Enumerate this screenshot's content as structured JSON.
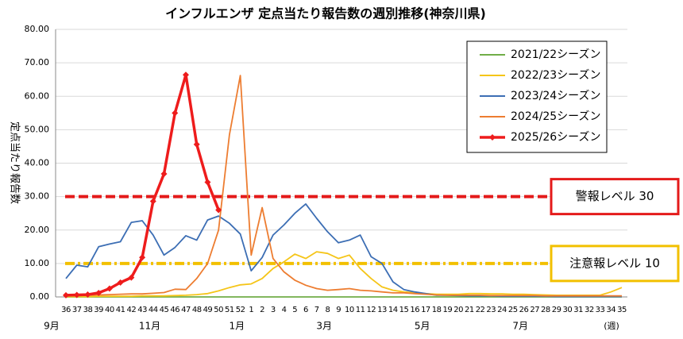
{
  "chart_data": {
    "type": "line",
    "title": "インフルエンザ 定点当たり報告数の週別推移(神奈川県)",
    "y_label": "定点当たり報告数",
    "x_unit": "(週)",
    "categories": [
      "36",
      "37",
      "38",
      "39",
      "40",
      "41",
      "42",
      "43",
      "44",
      "45",
      "46",
      "47",
      "48",
      "49",
      "50",
      "51",
      "52",
      "1",
      "2",
      "3",
      "4",
      "5",
      "6",
      "7",
      "8",
      "9",
      "10",
      "11",
      "12",
      "13",
      "14",
      "15",
      "16",
      "17",
      "18",
      "19",
      "20",
      "21",
      "22",
      "23",
      "24",
      "25",
      "26",
      "27",
      "28",
      "29",
      "30",
      "31",
      "32",
      "33",
      "34",
      "35"
    ],
    "month_labels": [
      {
        "text": "9月",
        "category": "36"
      },
      {
        "text": "11月",
        "category": "45"
      },
      {
        "text": "1月",
        "category": "1"
      },
      {
        "text": "3月",
        "category": "9"
      },
      {
        "text": "5月",
        "category": "18"
      },
      {
        "text": "7月",
        "category": "27"
      }
    ],
    "ylim": [
      0,
      80
    ],
    "yticks": [
      {
        "value": 0,
        "label": "0.00"
      },
      {
        "value": 10,
        "label": "10.00"
      },
      {
        "value": 20,
        "label": "20.00"
      },
      {
        "value": 30,
        "label": "30.00"
      },
      {
        "value": 40,
        "label": "40.00"
      },
      {
        "value": 50,
        "label": "50.00"
      },
      {
        "value": 60,
        "label": "60.00"
      },
      {
        "value": 70,
        "label": "70.00"
      },
      {
        "value": 80,
        "label": "80.00"
      }
    ],
    "reference_lines": [
      {
        "value": 30,
        "label": "警報レベル 30",
        "color": "#e41a1a"
      },
      {
        "value": 10,
        "label": "注意報レベル 10",
        "color": "#f2c000"
      }
    ],
    "series": [
      {
        "name": "2021/22シーズン",
        "color": "#70ad47",
        "values": [
          0,
          0,
          0,
          0,
          0,
          0,
          0,
          0,
          0,
          0,
          0,
          0,
          0,
          0,
          0,
          0,
          0,
          0,
          0,
          0,
          0,
          0,
          0,
          0,
          0,
          0,
          0,
          0,
          0,
          0,
          0,
          0,
          0,
          0,
          0,
          0,
          0,
          0,
          0,
          0,
          0,
          0,
          0,
          0,
          0,
          0,
          0,
          0,
          0,
          0,
          0,
          0
        ]
      },
      {
        "name": "2022/23シーズン",
        "color": "#f5c518",
        "values": [
          0.1,
          0.1,
          0.1,
          0.2,
          0.2,
          0.2,
          0.2,
          0.3,
          0.3,
          0.3,
          0.4,
          0.5,
          0.7,
          1.0,
          1.8,
          2.8,
          3.6,
          3.9,
          5.5,
          8.5,
          10.5,
          12.8,
          11.5,
          13.5,
          13.0,
          11.5,
          12.5,
          8.5,
          5.5,
          3.0,
          2.0,
          1.5,
          1.2,
          1.0,
          0.8,
          0.8,
          0.8,
          1.0,
          1.0,
          0.9,
          0.9,
          0.8,
          0.8,
          0.7,
          0.6,
          0.5,
          0.5,
          0.5,
          0.5,
          0.5,
          1.5,
          2.8
        ]
      },
      {
        "name": "2023/24シーズン",
        "color": "#3c6eb4",
        "values": [
          5.5,
          9.5,
          9.0,
          15.0,
          15.8,
          16.5,
          22.3,
          22.8,
          18.5,
          12.5,
          14.8,
          18.3,
          17.0,
          23.0,
          24.2,
          22.0,
          18.8,
          7.8,
          11.8,
          18.5,
          21.5,
          25.0,
          27.8,
          23.5,
          19.5,
          16.2,
          17.0,
          18.5,
          12.0,
          10.0,
          4.5,
          2.2,
          1.5,
          1.0,
          0.5,
          0.5,
          0.4,
          0.3,
          0.3,
          0.3,
          0.2,
          0.2,
          0.2,
          0.2,
          0.2,
          0.1,
          0.1,
          0.1,
          0.1,
          0.1,
          0.1,
          0.1
        ]
      },
      {
        "name": "2024/25シーズン",
        "color": "#ed7d31",
        "values": [
          0.3,
          0.4,
          0.5,
          0.6,
          0.7,
          0.8,
          0.9,
          0.9,
          1.1,
          1.3,
          2.3,
          2.2,
          5.5,
          10,
          20,
          48.5,
          66.2,
          12.5,
          26.7,
          11.5,
          7.5,
          5.0,
          3.5,
          2.5,
          2.0,
          2.2,
          2.5,
          2.0,
          1.8,
          1.5,
          1.2,
          1.2,
          1.0,
          0.8,
          0.6,
          0.5,
          0.5,
          0.5,
          0.5,
          0.4,
          0.4,
          0.4,
          0.4,
          0.4,
          0.3,
          0.3,
          0.3,
          0.3,
          0.3,
          0.3,
          0.3,
          0.3
        ]
      },
      {
        "name": "2025/26シーズン",
        "color": "#ee1c1c",
        "marker": "diamond",
        "values": [
          0.5,
          0.6,
          0.7,
          1.2,
          2.5,
          4.3,
          5.8,
          11.8,
          28.6,
          36.8,
          55.0,
          66.4,
          45.6,
          34.3,
          26.0,
          null,
          null,
          null,
          null,
          null,
          null,
          null,
          null,
          null,
          null,
          null,
          null,
          null,
          null,
          null,
          null,
          null,
          null,
          null,
          null,
          null,
          null,
          null,
          null,
          null,
          null,
          null,
          null,
          null,
          null,
          null,
          null,
          null,
          null,
          null,
          null,
          null
        ]
      }
    ]
  }
}
